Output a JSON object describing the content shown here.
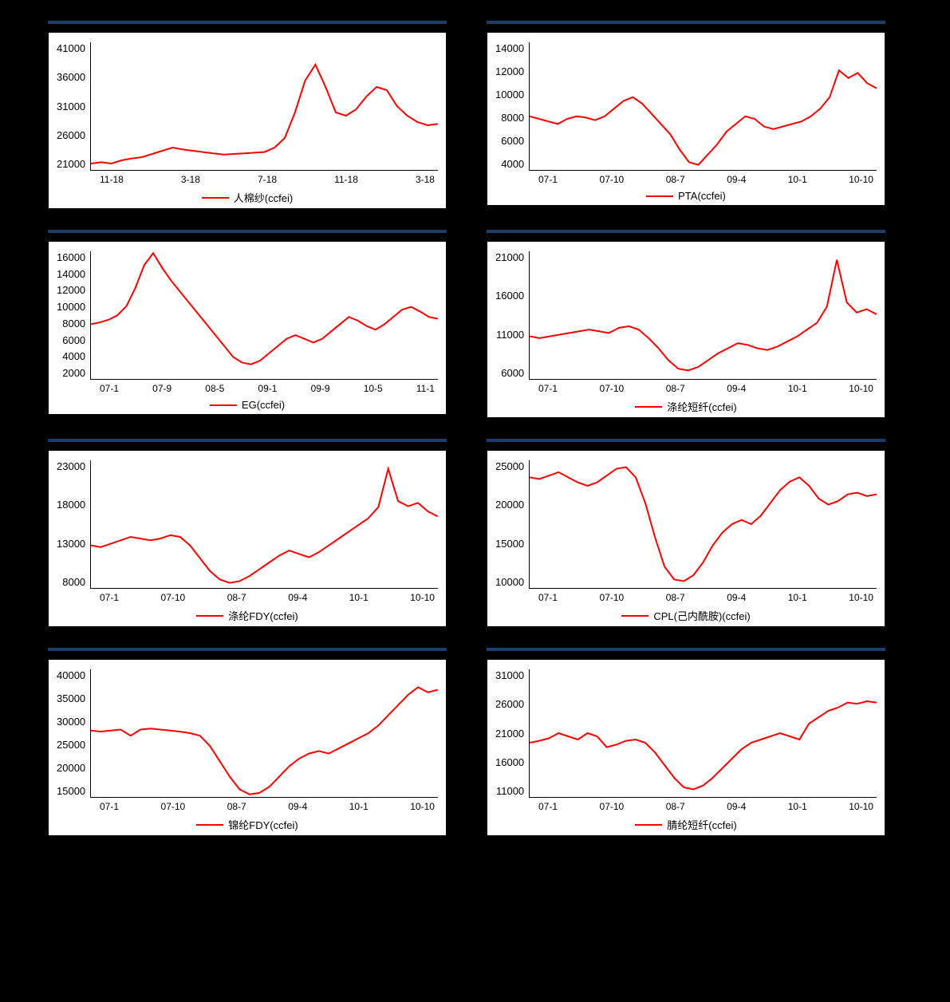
{
  "page": {
    "background_color": "#000000",
    "rule_color": "#1d3d6b",
    "chart_bg": "#ffffff",
    "axis_color": "#000000",
    "text_color": "#000000"
  },
  "charts": [
    {
      "id": "chart1",
      "type": "line",
      "legend": "人棉纱(ccfei)",
      "line_color": "#ff0000",
      "line_width": 2,
      "ylim": [
        21000,
        41000
      ],
      "ytick_step": 5000,
      "yticks": [
        "41000",
        "36000",
        "31000",
        "26000",
        "21000"
      ],
      "xticks": [
        "11-18",
        "3-18",
        "7-18",
        "11-18",
        "3-18"
      ],
      "values_y": [
        22000,
        22200,
        22000,
        22500,
        22800,
        23000,
        23500,
        24000,
        24500,
        24200,
        24000,
        23800,
        23600,
        23400,
        23500,
        23600,
        23700,
        23800,
        24500,
        26000,
        30000,
        35000,
        37500,
        34000,
        30000,
        29500,
        30500,
        32500,
        34000,
        33500,
        31000,
        29500,
        28500,
        28000,
        28200
      ]
    },
    {
      "id": "chart2",
      "type": "line",
      "legend": "PTA(ccfei)",
      "line_color": "#ff0000",
      "line_width": 2,
      "ylim": [
        4000,
        14000
      ],
      "ytick_step": 2000,
      "yticks": [
        "14000",
        "12000",
        "10000",
        "8000",
        "6000",
        "4000"
      ],
      "xticks": [
        "07-1",
        "07-10",
        "08-7",
        "09-4",
        "10-1",
        "10-10"
      ],
      "values_y": [
        8200,
        8000,
        7800,
        7600,
        8000,
        8200,
        8100,
        7900,
        8200,
        8800,
        9400,
        9700,
        9200,
        8400,
        7600,
        6800,
        5600,
        4600,
        4400,
        5200,
        6000,
        7000,
        7600,
        8200,
        8000,
        7400,
        7200,
        7400,
        7600,
        7800,
        8200,
        8800,
        9700,
        11800,
        11200,
        11600,
        10800,
        10400
      ]
    },
    {
      "id": "chart3",
      "type": "line",
      "legend": "EG(ccfei)",
      "line_color": "#ff0000",
      "line_width": 2,
      "ylim": [
        2000,
        16000
      ],
      "ytick_step": 2000,
      "yticks": [
        "16000",
        "14000",
        "12000",
        "10000",
        "8000",
        "6000",
        "4000",
        "2000"
      ],
      "xticks": [
        "07-1",
        "07-9",
        "08-5",
        "09-1",
        "09-9",
        "10-5",
        "11-1"
      ],
      "values_y": [
        8000,
        8200,
        8500,
        9000,
        10000,
        12000,
        14500,
        15800,
        14200,
        12800,
        11600,
        10400,
        9200,
        8000,
        6800,
        5600,
        4400,
        3800,
        3600,
        4000,
        4800,
        5600,
        6400,
        6800,
        6400,
        6000,
        6400,
        7200,
        8000,
        8800,
        8400,
        7800,
        7400,
        8000,
        8800,
        9600,
        9900,
        9400,
        8800,
        8600
      ]
    },
    {
      "id": "chart4",
      "type": "line",
      "legend": "涤纶短纤(ccfei)",
      "line_color": "#ff0000",
      "line_width": 2,
      "ylim": [
        6000,
        21000
      ],
      "ytick_step": 5000,
      "yticks": [
        "21000",
        "16000",
        "11000",
        "6000"
      ],
      "xticks": [
        "07-1",
        "07-10",
        "08-7",
        "09-4",
        "10-1",
        "10-10"
      ],
      "values_y": [
        11000,
        10800,
        11000,
        11200,
        11400,
        11600,
        11800,
        11600,
        11400,
        12000,
        12200,
        11800,
        10800,
        9600,
        8200,
        7200,
        7000,
        7400,
        8200,
        9000,
        9600,
        10200,
        10000,
        9600,
        9400,
        9800,
        10400,
        11000,
        11800,
        12600,
        14500,
        20000,
        15000,
        13800,
        14200,
        13600
      ]
    },
    {
      "id": "chart5",
      "type": "line",
      "legend": "涤纶FDY(ccfei)",
      "line_color": "#ff0000",
      "line_width": 2,
      "ylim": [
        8000,
        23000
      ],
      "ytick_step": 5000,
      "yticks": [
        "23000",
        "18000",
        "13000",
        "8000"
      ],
      "xticks": [
        "07-1",
        "07-10",
        "08-7",
        "09-4",
        "10-1",
        "10-10"
      ],
      "values_y": [
        13000,
        12800,
        13200,
        13600,
        14000,
        13800,
        13600,
        13800,
        14200,
        14000,
        13000,
        11500,
        10000,
        9000,
        8600,
        8800,
        9400,
        10200,
        11000,
        11800,
        12400,
        12000,
        11600,
        12200,
        13000,
        13800,
        14600,
        15400,
        16200,
        17500,
        22000,
        18200,
        17600,
        18000,
        17000,
        16400
      ]
    },
    {
      "id": "chart6",
      "type": "line",
      "legend": "CPL(己内酰胺)(ccfei)",
      "line_color": "#ff0000",
      "line_width": 2,
      "ylim": [
        10000,
        25000
      ],
      "ytick_step": 5000,
      "yticks": [
        "25000",
        "20000",
        "15000",
        "10000"
      ],
      "xticks": [
        "07-1",
        "07-10",
        "08-7",
        "09-4",
        "10-1",
        "10-10"
      ],
      "values_y": [
        23000,
        22800,
        23200,
        23600,
        23000,
        22400,
        22000,
        22400,
        23200,
        24000,
        24200,
        23000,
        20000,
        16000,
        12500,
        11000,
        10800,
        11500,
        13000,
        15000,
        16500,
        17500,
        18000,
        17500,
        18500,
        20000,
        21500,
        22500,
        23000,
        22000,
        20500,
        19800,
        20200,
        21000,
        21200,
        20800,
        21000
      ]
    },
    {
      "id": "chart7",
      "type": "line",
      "legend": "锦纶FDY(ccfei)",
      "line_color": "#ff0000",
      "line_width": 2,
      "ylim": [
        15000,
        40000
      ],
      "ytick_step": 5000,
      "yticks": [
        "40000",
        "35000",
        "30000",
        "25000",
        "20000",
        "15000"
      ],
      "xticks": [
        "07-1",
        "07-10",
        "08-7",
        "09-4",
        "10-1",
        "10-10"
      ],
      "values_y": [
        28000,
        27800,
        28000,
        28200,
        27000,
        28200,
        28400,
        28200,
        28000,
        27800,
        27500,
        27000,
        25000,
        22000,
        19000,
        16500,
        15500,
        15800,
        17000,
        19000,
        21000,
        22500,
        23500,
        24000,
        23500,
        24500,
        25500,
        26500,
        27500,
        29000,
        31000,
        33000,
        35000,
        36500,
        35500,
        36000
      ]
    },
    {
      "id": "chart8",
      "type": "line",
      "legend": "腈纶短纤(ccfei)",
      "line_color": "#ff0000",
      "line_width": 2,
      "ylim": [
        11000,
        31000
      ],
      "ytick_step": 5000,
      "yticks": [
        "31000",
        "26000",
        "21000",
        "16000",
        "11000"
      ],
      "xticks": [
        "07-1",
        "07-10",
        "08-7",
        "09-4",
        "10-1",
        "10-10"
      ],
      "values_y": [
        19500,
        19800,
        20200,
        21000,
        20500,
        20000,
        21000,
        20500,
        18800,
        19200,
        19800,
        20000,
        19500,
        18000,
        16000,
        14000,
        12500,
        12200,
        12800,
        14000,
        15500,
        17000,
        18500,
        19500,
        20000,
        20500,
        21000,
        20500,
        20000,
        22500,
        23500,
        24500,
        25000,
        25800,
        25600,
        26000,
        25800
      ]
    }
  ]
}
